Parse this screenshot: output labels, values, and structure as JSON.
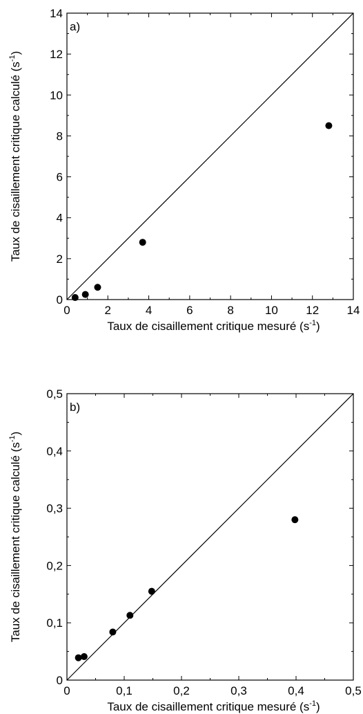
{
  "chart_data": [
    {
      "type": "scatter",
      "panel_label": "a)",
      "xlabel": "Taux de cisaillement critique mesuré (s",
      "xlabel_sup": "-1",
      "xlabel_close": ")",
      "ylabel": "Taux de cisaillement critique calculé (s",
      "ylabel_sup": "-1",
      "ylabel_close": ")",
      "xlim": [
        0,
        14
      ],
      "ylim": [
        0,
        14
      ],
      "xticks": [
        0,
        2,
        4,
        6,
        8,
        10,
        12,
        14
      ],
      "yticks": [
        0,
        2,
        4,
        6,
        8,
        10,
        12,
        14
      ],
      "xtick_labels": [
        "0",
        "2",
        "4",
        "6",
        "8",
        "10",
        "12",
        "14"
      ],
      "ytick_labels": [
        "0",
        "2",
        "4",
        "6",
        "8",
        "10",
        "12",
        "14"
      ],
      "reference_line": "y = x",
      "points": [
        {
          "x": 0.4,
          "y": 0.1
        },
        {
          "x": 0.9,
          "y": 0.25
        },
        {
          "x": 1.5,
          "y": 0.6
        },
        {
          "x": 3.7,
          "y": 2.8
        },
        {
          "x": 12.8,
          "y": 8.5
        }
      ]
    },
    {
      "type": "scatter",
      "panel_label": "b)",
      "xlabel": "Taux de cisaillement critique mesuré (s",
      "xlabel_sup": "-1",
      "xlabel_close": ")",
      "ylabel": "Taux de cisaillement critique calculé (s",
      "ylabel_sup": "-1",
      "ylabel_close": ")",
      "xlim": [
        0,
        0.5
      ],
      "ylim": [
        0,
        0.5
      ],
      "xticks": [
        0,
        0.1,
        0.2,
        0.3,
        0.4,
        0.5
      ],
      "yticks": [
        0,
        0.1,
        0.2,
        0.3,
        0.4,
        0.5
      ],
      "xtick_labels": [
        "0",
        "0,1",
        "0,2",
        "0,3",
        "0,4",
        "0,5"
      ],
      "ytick_labels": [
        "0",
        "0,1",
        "0,2",
        "0,3",
        "0,4",
        "0,5"
      ],
      "reference_line": "y = x",
      "points": [
        {
          "x": 0.02,
          "y": 0.039
        },
        {
          "x": 0.03,
          "y": 0.041
        },
        {
          "x": 0.08,
          "y": 0.084
        },
        {
          "x": 0.11,
          "y": 0.113
        },
        {
          "x": 0.148,
          "y": 0.155
        },
        {
          "x": 0.398,
          "y": 0.28
        }
      ]
    }
  ]
}
